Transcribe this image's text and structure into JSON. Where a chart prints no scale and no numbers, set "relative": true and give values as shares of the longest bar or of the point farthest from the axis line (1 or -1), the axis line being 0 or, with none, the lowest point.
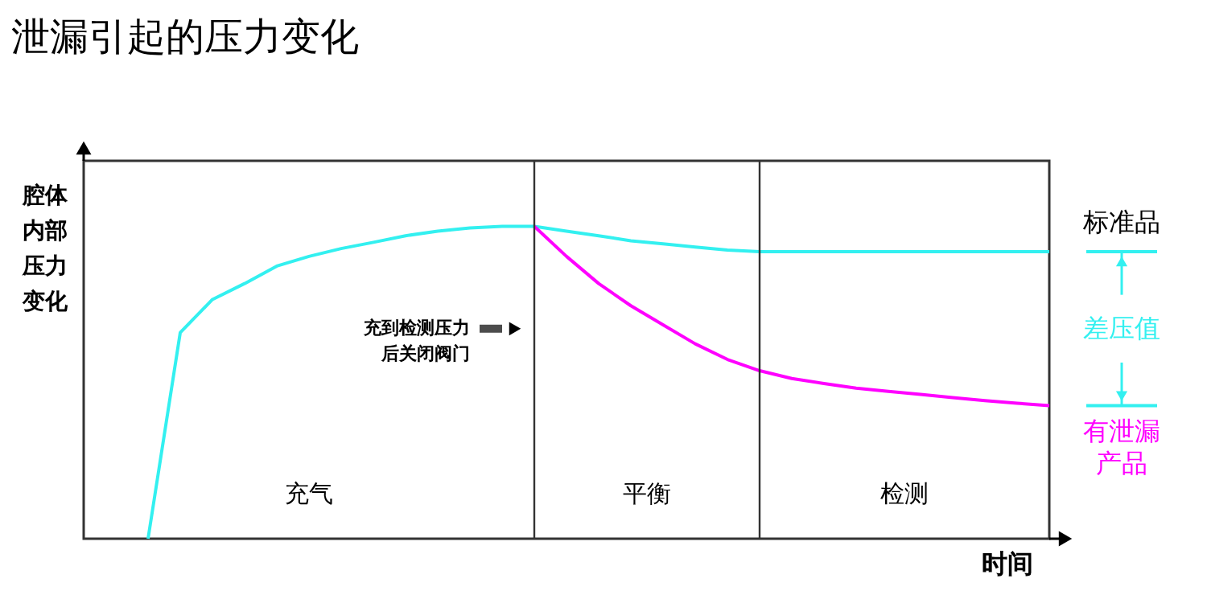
{
  "chart_data": {
    "type": "line",
    "title": "泄漏引起的压力变化",
    "xlabel": "时间",
    "ylabel": "腔体内部压力变化",
    "relative": true,
    "tick_labels": false,
    "grid": false,
    "marker": "none",
    "line_style": "solid",
    "categories": [
      null,
      null,
      null,
      null,
      null,
      null,
      null,
      null,
      null,
      null,
      null,
      null,
      null,
      null,
      null,
      null,
      null,
      null,
      null,
      null,
      null,
      null,
      null,
      null,
      null,
      null,
      null,
      null,
      null,
      null,
      null
    ],
    "series": [
      {
        "color": "#33f0f0",
        "values": [
          null,
          null,
          0,
          0.66,
          0.766,
          0.817,
          0.873,
          0.904,
          0.929,
          0.949,
          0.97,
          0.985,
          0.995,
          1.0,
          1.0,
          0.985,
          0.97,
          0.954,
          0.944,
          0.934,
          0.924,
          0.919,
          0.919,
          0.919,
          0.919,
          0.919,
          0.919,
          0.919,
          0.919,
          0.919,
          0.919
        ]
      },
      {
        "color": "#ff00ff",
        "values": [
          null,
          null,
          null,
          null,
          null,
          null,
          null,
          null,
          null,
          null,
          null,
          null,
          null,
          null,
          1.0,
          0.904,
          0.817,
          0.746,
          0.685,
          0.624,
          0.574,
          0.538,
          0.513,
          0.497,
          0.482,
          0.472,
          0.462,
          0.452,
          0.442,
          0.434,
          0.426
        ]
      }
    ],
    "annotations": [
      "充到检测压力后关闭阀门",
      "标准品",
      "差压值",
      "有泄漏产品",
      "充气",
      "平衡",
      "检测"
    ]
  }
}
